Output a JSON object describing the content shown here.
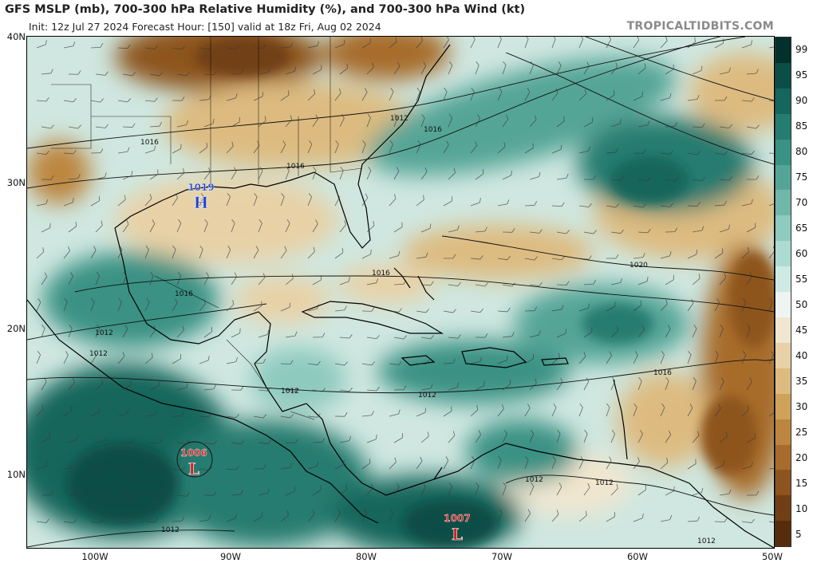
{
  "header": {
    "title": "GFS MSLP (mb), 700-300 hPa Relative Humidity (%), and 700-300 hPa Wind (kt)",
    "subtitle": "Init: 12z Jul 27 2024   Forecast Hour: [150]   valid at 18z Fri, Aug 02 2024",
    "brand": "TROPICALTIDBITS.COM"
  },
  "axes": {
    "lat_labels": [
      "40N",
      "30N",
      "20N",
      "10N"
    ],
    "lon_labels": [
      "100W",
      "90W",
      "80W",
      "70W",
      "60W",
      "50W"
    ]
  },
  "colorbar": {
    "labels": [
      "99",
      "95",
      "90",
      "85",
      "80",
      "75",
      "70",
      "65",
      "60",
      "55",
      "50",
      "45",
      "40",
      "35",
      "30",
      "25",
      "20",
      "15",
      "10",
      "5"
    ],
    "colors": [
      "#02302a",
      "#0a4e46",
      "#15665c",
      "#257c70",
      "#3a9284",
      "#54a597",
      "#70b7aa",
      "#8ecabe",
      "#aedbd1",
      "#cfeae4",
      "#eef4f2",
      "#f1e6cf",
      "#e8d1a6",
      "#ddbb80",
      "#cfa25c",
      "#bd8640",
      "#a76c2c",
      "#8d541f",
      "#713f15",
      "#572c0c"
    ]
  },
  "pressure_centers": [
    {
      "type": "H",
      "value": "1019"
    },
    {
      "type": "L",
      "value": "1006"
    },
    {
      "type": "L",
      "value": "1007"
    }
  ],
  "isobar_labels": [
    "1012",
    "1016",
    "1016",
    "1016",
    "1016",
    "1016",
    "1020",
    "1016",
    "1012",
    "1012",
    "1012",
    "1012",
    "1012",
    "1012",
    "1012",
    "1012"
  ],
  "colors": {
    "high": "#1a3fd0",
    "low": "#d81e1e",
    "isobar": "#111111",
    "coast": "#000000"
  }
}
